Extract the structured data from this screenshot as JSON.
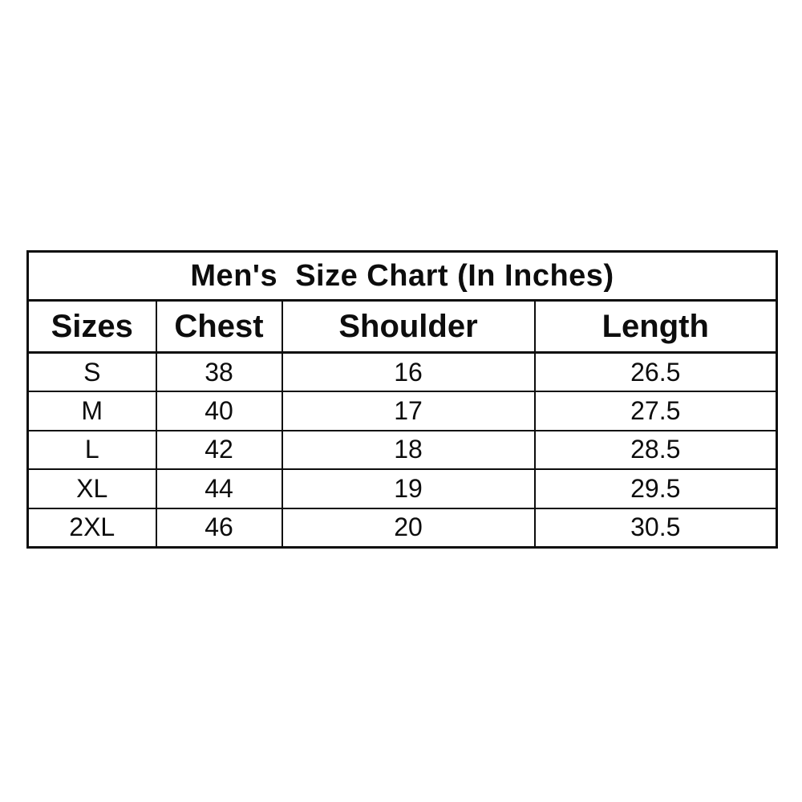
{
  "colors": {
    "background": "#ffffff",
    "border": "#0d0d0d",
    "text": "#0d0d0d"
  },
  "chart_data": {
    "type": "table",
    "title": "Men's  Size Chart (In Inches)",
    "columns": [
      "Sizes",
      "Chest",
      "Shoulder",
      "Length"
    ],
    "rows": [
      [
        "S",
        "38",
        "16",
        "26.5"
      ],
      [
        "M",
        "40",
        "17",
        "27.5"
      ],
      [
        "L",
        "42",
        "18",
        "28.5"
      ],
      [
        "XL",
        "44",
        "19",
        "29.5"
      ],
      [
        "2XL",
        "46",
        "20",
        "30.5"
      ]
    ],
    "units": "inches",
    "layout": {
      "grid": "full-borders",
      "title_position": "top-merged-row",
      "text_alignment": "center"
    }
  }
}
